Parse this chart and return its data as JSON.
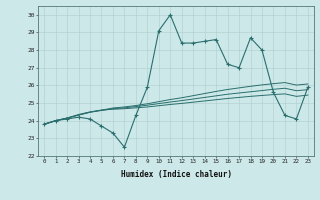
{
  "xlabel": "Humidex (Indice chaleur)",
  "xlim": [
    -0.5,
    23.5
  ],
  "ylim": [
    22,
    30.5
  ],
  "yticks": [
    22,
    23,
    24,
    25,
    26,
    27,
    28,
    29,
    30
  ],
  "xticks": [
    0,
    1,
    2,
    3,
    4,
    5,
    6,
    7,
    8,
    9,
    10,
    11,
    12,
    13,
    14,
    15,
    16,
    17,
    18,
    19,
    20,
    21,
    22,
    23
  ],
  "background_color": "#cde8e8",
  "grid_color": "#b0cccc",
  "line_color": "#2a6e6e",
  "line1_x": [
    0,
    1,
    2,
    3,
    4,
    5,
    6,
    7,
    8,
    9,
    10,
    11,
    12,
    13,
    14,
    15,
    16,
    17,
    18,
    19,
    20,
    21,
    22,
    23
  ],
  "line1_y": [
    23.8,
    24.0,
    24.1,
    24.2,
    24.1,
    23.7,
    23.3,
    22.5,
    24.3,
    25.9,
    29.1,
    30.0,
    28.4,
    28.4,
    28.5,
    28.6,
    27.2,
    27.0,
    28.7,
    28.0,
    25.6,
    24.3,
    24.1,
    25.9
  ],
  "line2_x": [
    0,
    1,
    2,
    3,
    4,
    5,
    6,
    7,
    8,
    9,
    10,
    11,
    12,
    13,
    14,
    15,
    16,
    17,
    18,
    19,
    20,
    21,
    22,
    23
  ],
  "line2_y": [
    23.8,
    24.0,
    24.15,
    24.35,
    24.5,
    24.6,
    24.65,
    24.68,
    24.73,
    24.78,
    24.85,
    24.92,
    24.98,
    25.05,
    25.12,
    25.19,
    25.26,
    25.32,
    25.38,
    25.43,
    25.48,
    25.52,
    25.38,
    25.45
  ],
  "line3_x": [
    0,
    1,
    2,
    3,
    4,
    5,
    6,
    7,
    8,
    9,
    10,
    11,
    12,
    13,
    14,
    15,
    16,
    17,
    18,
    19,
    20,
    21,
    22,
    23
  ],
  "line3_y": [
    23.8,
    24.0,
    24.15,
    24.32,
    24.48,
    24.58,
    24.68,
    24.73,
    24.8,
    24.88,
    24.97,
    25.06,
    25.14,
    25.23,
    25.32,
    25.41,
    25.5,
    25.57,
    25.64,
    25.71,
    25.78,
    25.84,
    25.7,
    25.76
  ],
  "line4_x": [
    0,
    1,
    2,
    3,
    4,
    5,
    6,
    7,
    8,
    9,
    10,
    11,
    12,
    13,
    14,
    15,
    16,
    17,
    18,
    19,
    20,
    21,
    22,
    23
  ],
  "line4_y": [
    23.8,
    24.0,
    24.15,
    24.32,
    24.48,
    24.6,
    24.72,
    24.78,
    24.86,
    24.96,
    25.08,
    25.2,
    25.3,
    25.42,
    25.54,
    25.66,
    25.77,
    25.86,
    25.95,
    26.03,
    26.1,
    26.16,
    26.02,
    26.08
  ]
}
